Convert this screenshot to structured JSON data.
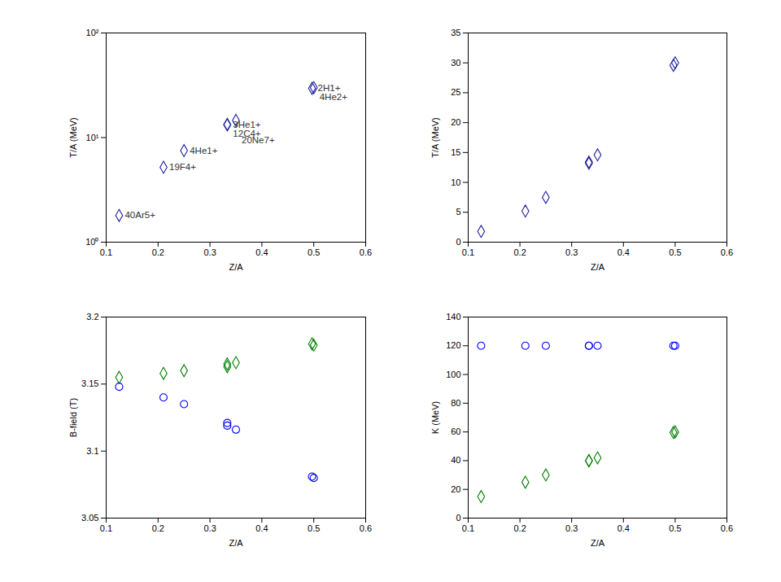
{
  "chart_data": [
    {
      "type": "scatter",
      "xlabel": "Z/A",
      "ylabel": "T/A (MeV)",
      "log": "y",
      "x": [
        0.125,
        0.2105,
        0.25,
        0.3333,
        0.3333,
        0.35,
        0.4966,
        0.5
      ],
      "series": [
        {
          "color": "#1f1f9f",
          "marker": "diamond",
          "values": [
            1.8,
            5.2,
            7.5,
            13.2,
            13.4,
            14.6,
            29.6,
            30.0
          ],
          "labels": [
            "40Ar5+",
            "19F4+",
            "4He1+",
            "3He1+",
            "12C4+",
            "20Ne7+",
            "2H1+",
            "4He2+"
          ]
        }
      ],
      "xlim": [
        0.1,
        0.6
      ],
      "xticks": [
        0.1,
        0.2,
        0.3,
        0.4,
        0.5,
        0.6
      ],
      "ylim": [
        1,
        100
      ],
      "yticks": [
        {
          "value": 1,
          "label": "10⁰"
        },
        {
          "value": 10,
          "label": "10¹"
        },
        {
          "value": 100,
          "label": "10²"
        }
      ]
    },
    {
      "type": "scatter",
      "xlabel": "Z/A",
      "ylabel": "T/A (MeV)",
      "x": [
        0.125,
        0.2105,
        0.25,
        0.3333,
        0.3333,
        0.35,
        0.4966,
        0.5
      ],
      "series": [
        {
          "color": "#1f1f9f",
          "marker": "diamond",
          "values": [
            1.8,
            5.2,
            7.5,
            13.2,
            13.4,
            14.6,
            29.6,
            30.0
          ]
        }
      ],
      "xlim": [
        0.1,
        0.6
      ],
      "xticks": [
        0.1,
        0.2,
        0.3,
        0.4,
        0.5,
        0.6
      ],
      "ylim": [
        0,
        35
      ],
      "yticks": [
        0,
        5,
        10,
        15,
        20,
        25,
        30,
        35
      ]
    },
    {
      "type": "scatter",
      "xlabel": "Z/A",
      "ylabel": "B-field (T)",
      "x": [
        0.125,
        0.2105,
        0.25,
        0.3333,
        0.3333,
        0.35,
        0.4966,
        0.5
      ],
      "series": [
        {
          "color": "#008000",
          "marker": "diamond",
          "values": [
            3.155,
            3.158,
            3.16,
            3.165,
            3.163,
            3.166,
            3.18,
            3.179
          ]
        },
        {
          "color": "#0000ff",
          "marker": "circle",
          "values": [
            3.148,
            3.14,
            3.135,
            3.121,
            3.119,
            3.116,
            3.081,
            3.08
          ]
        }
      ],
      "xlim": [
        0.1,
        0.6
      ],
      "xticks": [
        0.1,
        0.2,
        0.3,
        0.4,
        0.5,
        0.6
      ],
      "ylim": [
        3.05,
        3.2
      ],
      "yticks": [
        3.05,
        3.1,
        3.15,
        3.2
      ]
    },
    {
      "type": "scatter",
      "xlabel": "Z/A",
      "ylabel": "K (MeV)",
      "x": [
        0.125,
        0.2105,
        0.25,
        0.3333,
        0.3333,
        0.35,
        0.4966,
        0.5
      ],
      "series": [
        {
          "color": "#0000ff",
          "marker": "circle",
          "values": [
            120,
            120,
            120,
            120,
            120,
            120,
            120,
            120
          ]
        },
        {
          "color": "#008000",
          "marker": "diamond",
          "values": [
            15,
            25,
            30,
            40,
            40,
            42,
            59.6,
            60
          ]
        }
      ],
      "xlim": [
        0.1,
        0.6
      ],
      "xticks": [
        0.1,
        0.2,
        0.3,
        0.4,
        0.5,
        0.6
      ],
      "ylim": [
        0,
        140
      ],
      "yticks": [
        0,
        20,
        40,
        60,
        80,
        100,
        120,
        140
      ]
    }
  ]
}
